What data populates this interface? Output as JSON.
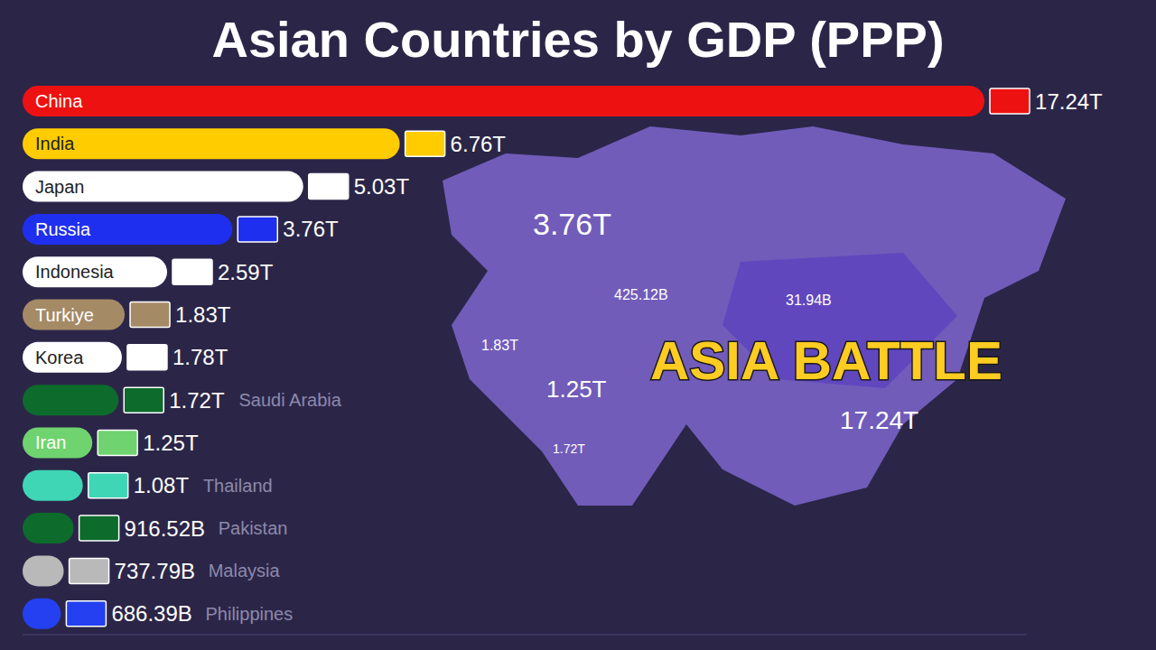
{
  "chart_data": {
    "type": "bar",
    "title": "Asian Countries by GDP (PPP)",
    "orientation": "horizontal",
    "categories": [
      "China",
      "India",
      "Japan",
      "Russia",
      "Indonesia",
      "Turkiye",
      "Korea",
      "Saudi Arabia",
      "Iran",
      "Thailand",
      "Pakistan",
      "Malaysia",
      "Philippines"
    ],
    "values": [
      17.24,
      6.76,
      5.03,
      3.76,
      2.59,
      1.83,
      1.78,
      1.72,
      1.25,
      1.08,
      0.91652,
      0.73779,
      0.68639
    ],
    "value_labels": [
      "17.24T",
      "6.76T",
      "5.03T",
      "3.76T",
      "2.59T",
      "1.83T",
      "1.78T",
      "1.72T",
      "1.25T",
      "1.08T",
      "916.52B",
      "737.79B",
      "686.39B"
    ],
    "colors": [
      "#ee1111",
      "#ffcc00",
      "#ffffff",
      "#1f2ff0",
      "#ffffff",
      "#a58a66",
      "#ffffff",
      "#0d6b2c",
      "#6fd36f",
      "#3fd6b6",
      "#0d6b2c",
      "#b9b9b9",
      "#2440f0"
    ],
    "xlim": [
      0,
      18
    ],
    "data_labels": true,
    "tick_labels": false,
    "grid": false,
    "annotations": [
      "ASIA BATTLE",
      "3.76T",
      "425.12B",
      "31.94B",
      "1.83T",
      "1.25T",
      "1.72T",
      "17.24T"
    ]
  }
}
